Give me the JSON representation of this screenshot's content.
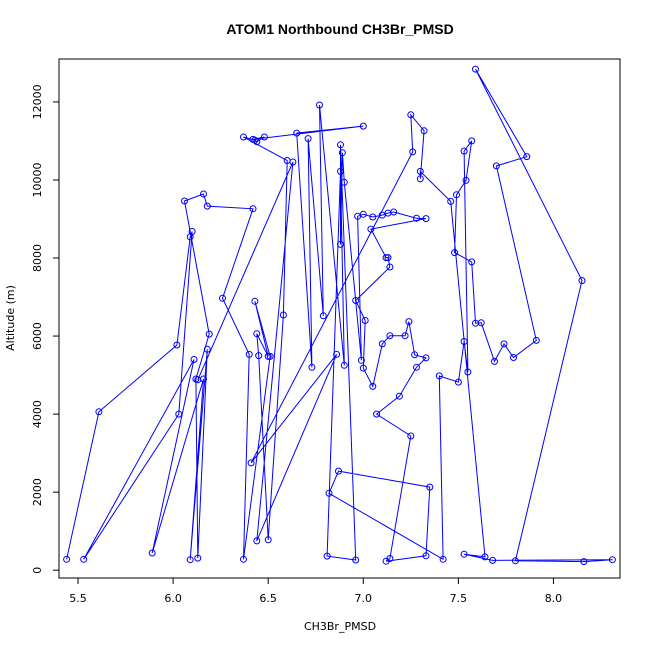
{
  "chart_data": {
    "type": "line",
    "title": "ATOM1 Northbound CH3Br_PMSD",
    "xlabel": "CH3Br_PMSD",
    "ylabel": "Altitude (m)",
    "xlim": [
      5.4,
      8.35
    ],
    "ylim": [
      -200,
      13100
    ],
    "xticks": [
      5.5,
      6.0,
      6.5,
      7.0,
      7.5,
      8.0
    ],
    "yticks": [
      0,
      2000,
      4000,
      6000,
      8000,
      10000,
      12000
    ],
    "color": "#0000ff",
    "grid": false,
    "series": [
      {
        "markers": "open-circle",
        "points": [
          [
            5.44,
            280
          ],
          [
            5.61,
            4060
          ],
          [
            6.02,
            5770
          ],
          [
            6.09,
            8540
          ],
          [
            6.1,
            8680
          ],
          [
            6.03,
            4000
          ],
          [
            5.53,
            280
          ],
          [
            6.11,
            5400
          ],
          [
            5.89,
            440
          ],
          [
            6.16,
            4900
          ],
          [
            6.09,
            270
          ],
          [
            6.18,
            5660
          ],
          [
            6.13,
            310
          ],
          [
            6.12,
            4900
          ],
          [
            6.19,
            6050
          ],
          [
            6.06,
            9460
          ],
          [
            6.16,
            9640
          ],
          [
            6.18,
            9330
          ],
          [
            6.42,
            9260
          ],
          [
            6.26,
            6970
          ],
          [
            6.4,
            5530
          ],
          [
            6.37,
            280
          ],
          [
            6.51,
            5480
          ],
          [
            6.43,
            6890
          ],
          [
            6.5,
            5480
          ],
          [
            6.44,
            6060
          ],
          [
            6.45,
            5500
          ],
          [
            6.5,
            780
          ],
          [
            6.58,
            6540
          ],
          [
            6.6,
            10500
          ],
          [
            6.37,
            11100
          ],
          [
            6.43,
            11020
          ],
          [
            6.44,
            10980
          ],
          [
            6.48,
            11100
          ],
          [
            6.42,
            11040
          ],
          [
            7.0,
            11380
          ],
          [
            6.65,
            11200
          ],
          [
            6.73,
            5200
          ],
          [
            6.71,
            11060
          ],
          [
            6.79,
            6520
          ],
          [
            6.77,
            11920
          ],
          [
            6.9,
            5250
          ],
          [
            6.88,
            10220
          ],
          [
            6.81,
            360
          ],
          [
            6.96,
            260
          ],
          [
            6.88,
            10900
          ],
          [
            6.88,
            8350
          ],
          [
            6.89,
            10700
          ],
          [
            6.9,
            9940
          ],
          [
            6.99,
            5380
          ],
          [
            6.97,
            9070
          ],
          [
            7.0,
            9120
          ],
          [
            7.05,
            9050
          ],
          [
            7.1,
            9100
          ],
          [
            7.13,
            9150
          ],
          [
            7.16,
            9180
          ],
          [
            7.28,
            9020
          ],
          [
            7.33,
            9010
          ],
          [
            7.04,
            8740
          ],
          [
            7.12,
            8010
          ],
          [
            7.13,
            8010
          ],
          [
            7.14,
            7770
          ],
          [
            6.96,
            6910
          ],
          [
            7.01,
            6400
          ],
          [
            7.0,
            5180
          ],
          [
            7.05,
            4710
          ],
          [
            7.1,
            5800
          ],
          [
            7.14,
            6010
          ],
          [
            7.22,
            6010
          ],
          [
            7.24,
            6370
          ],
          [
            7.27,
            5520
          ],
          [
            7.33,
            5440
          ],
          [
            7.28,
            5200
          ],
          [
            7.19,
            4460
          ],
          [
            7.07,
            4000
          ],
          [
            7.25,
            3440
          ],
          [
            7.14,
            300
          ],
          [
            7.12,
            230
          ],
          [
            7.33,
            370
          ],
          [
            7.35,
            2130
          ],
          [
            6.87,
            2540
          ],
          [
            6.82,
            1970
          ],
          [
            7.42,
            280
          ],
          [
            7.4,
            4980
          ],
          [
            7.5,
            4820
          ],
          [
            7.53,
            5860
          ],
          [
            7.55,
            5080
          ],
          [
            7.53,
            10740
          ],
          [
            7.57,
            11000
          ],
          [
            7.54,
            9990
          ],
          [
            7.49,
            9620
          ],
          [
            7.48,
            8140
          ],
          [
            7.57,
            7900
          ],
          [
            7.59,
            6330
          ],
          [
            7.62,
            6340
          ],
          [
            7.69,
            5350
          ],
          [
            7.74,
            5800
          ],
          [
            7.79,
            5450
          ],
          [
            7.91,
            5890
          ],
          [
            7.7,
            10360
          ],
          [
            7.86,
            10600
          ],
          [
            7.59,
            12840
          ],
          [
            8.15,
            7420
          ],
          [
            7.8,
            240
          ],
          [
            8.16,
            220
          ],
          [
            8.31,
            270
          ],
          [
            7.68,
            250
          ],
          [
            7.53,
            410
          ],
          [
            7.64,
            340
          ],
          [
            7.46,
            9450
          ],
          [
            7.3,
            10220
          ],
          [
            7.3,
            10030
          ],
          [
            7.32,
            11260
          ],
          [
            7.25,
            11670
          ],
          [
            7.26,
            10720
          ],
          [
            6.41,
            2750
          ],
          [
            6.86,
            5530
          ],
          [
            6.44,
            750
          ],
          [
            6.63,
            10460
          ],
          [
            6.13,
            4880
          ]
        ]
      }
    ]
  }
}
